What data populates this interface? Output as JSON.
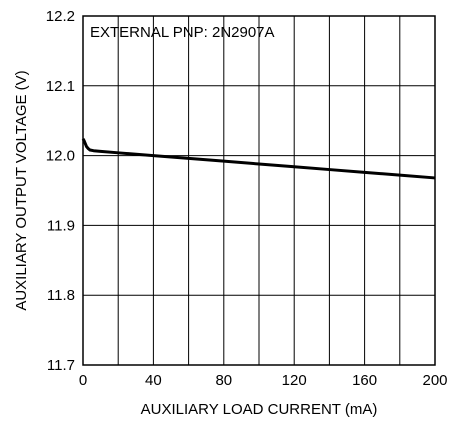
{
  "chart_data": {
    "type": "line",
    "annotation": "EXTERNAL PNP: 2N2907A",
    "xlabel": "AUXILIARY LOAD CURRENT (mA)",
    "ylabel": "AUXILIARY OUTPUT VOLTAGE (V)",
    "xlim": [
      0,
      200
    ],
    "ylim": [
      11.7,
      12.2
    ],
    "x_ticks": [
      0,
      40,
      80,
      120,
      160,
      200
    ],
    "x_tick_labels": [
      "0",
      "40",
      "80",
      "120",
      "160",
      "200"
    ],
    "y_ticks": [
      11.7,
      11.8,
      11.9,
      12.0,
      12.1,
      12.2
    ],
    "y_tick_labels": [
      "11.7",
      "11.8",
      "11.9",
      "12.0",
      "12.1",
      "12.2"
    ],
    "x_grid": [
      0,
      20,
      40,
      60,
      80,
      100,
      120,
      140,
      160,
      180,
      200
    ],
    "y_grid": [
      11.7,
      11.8,
      11.9,
      12.0,
      12.1,
      12.2
    ],
    "grid": true,
    "series": [
      {
        "x": [
          0,
          0.5,
          1,
          1.5,
          2,
          3,
          4,
          6,
          10,
          20,
          40,
          60,
          80,
          100,
          120,
          140,
          160,
          180,
          200
        ],
        "y": [
          12.024,
          12.022,
          12.019,
          12.016,
          12.013,
          12.01,
          12.008,
          12.007,
          12.006,
          12.004,
          12.0,
          11.996,
          11.992,
          11.988,
          11.984,
          11.98,
          11.976,
          11.972,
          11.968
        ]
      }
    ]
  }
}
